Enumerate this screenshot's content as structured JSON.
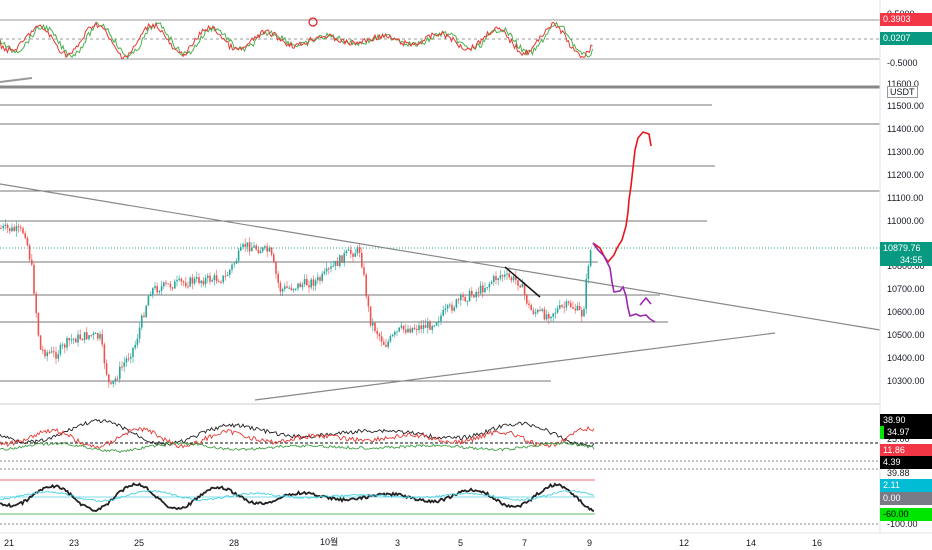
{
  "symbol_unit": "USDT",
  "top_osc": {
    "labels": [
      "0.5000",
      "-0.5000"
    ],
    "tags": [
      {
        "text": "0.3903",
        "bg": "#f23645"
      },
      {
        "text": "0.0207",
        "bg": "#089981"
      }
    ]
  },
  "price_axis": [
    "11600.0",
    "11500.00",
    "11400.00",
    "11300.00",
    "11200.00",
    "11100.00",
    "11000.00",
    "10800.00",
    "10700.00",
    "10600.00",
    "10500.00",
    "10400.00",
    "10300.00"
  ],
  "last_price": {
    "text": "10879.76",
    "countdown": "34:55",
    "bg": "#089981"
  },
  "mid_osc": {
    "labels": [
      "25.00"
    ],
    "tags": [
      {
        "text": "38.90",
        "bg": "#000000"
      },
      {
        "text": "34.97",
        "bg": "#000000"
      },
      {
        "text": "11.86",
        "bg": "#f23645"
      },
      {
        "text": "4.39",
        "bg": "#000000"
      }
    ]
  },
  "bot_osc": {
    "labels": [
      "39.88",
      "-100.00"
    ],
    "tags": [
      {
        "text": "2.11",
        "bg": "#00bcd4"
      },
      {
        "text": "0.00",
        "bg": "#787b86"
      },
      {
        "text": "-60.00",
        "bg": "#00e600"
      }
    ]
  },
  "time_axis": [
    "21",
    "23",
    "25",
    "28",
    "10월",
    "3",
    "5",
    "7",
    "9",
    "12",
    "14",
    "16"
  ],
  "colors": {
    "up": "#26a69a",
    "down": "#ef5350",
    "grid_line": "#777777",
    "red_draw": "#e8161b",
    "purple_draw": "#9c27b0"
  }
}
